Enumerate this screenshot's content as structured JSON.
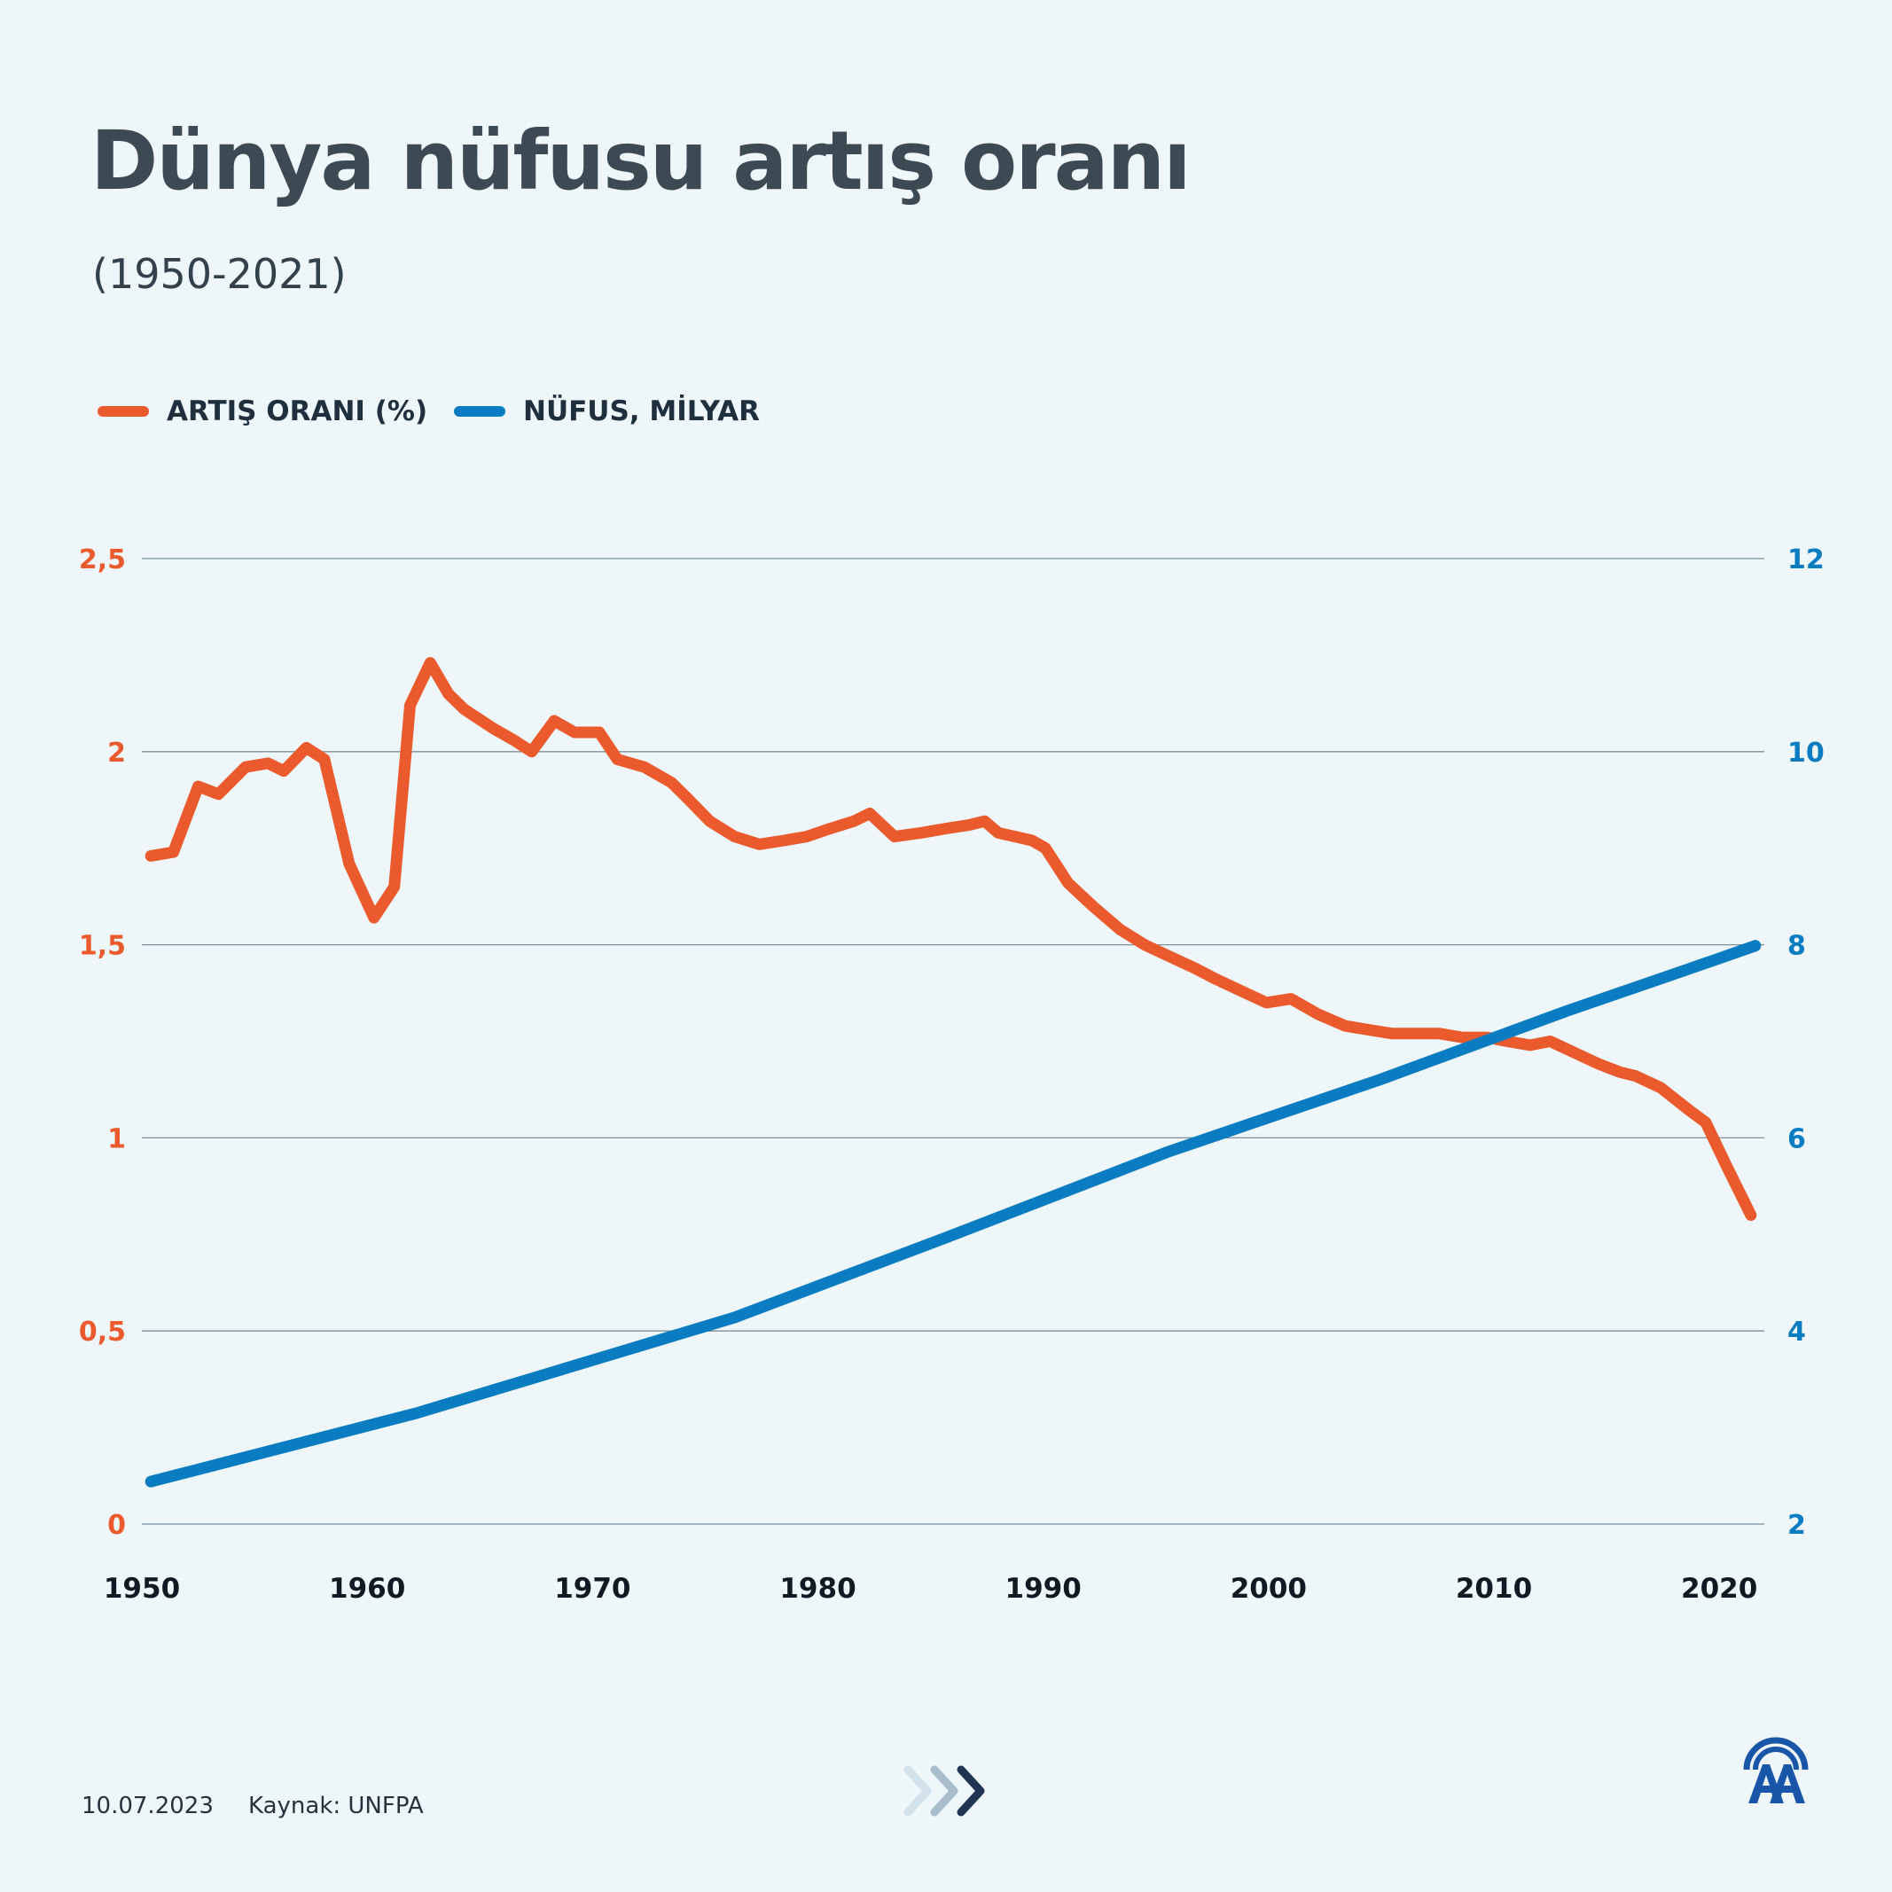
{
  "header": {
    "title": "Dünya nüfusu artış oranı",
    "subtitle": "(1950-2021)"
  },
  "legend": [
    {
      "label": "ARTIŞ ORANI (%)",
      "color": "#ea5a2d"
    },
    {
      "label": "NÜFUS, MİLYAR",
      "color": "#0a7cc1"
    }
  ],
  "footer": {
    "date": "10.07.2023",
    "source": "Kaynak: UNFPA"
  },
  "icons": {
    "chevrons": "forward-chevrons-icon",
    "logo": "anadolu-agency-logo"
  },
  "chart_data": {
    "type": "line",
    "x_ticks": [
      "1950",
      "1960",
      "1970",
      "1980",
      "1990",
      "2000",
      "2010",
      "2020"
    ],
    "xlim": [
      1950,
      2022
    ],
    "y_left": {
      "ticks": [
        "0",
        "0,5",
        "1",
        "1,5",
        "2",
        "2,5"
      ],
      "ylim": [
        0,
        2.5
      ],
      "color": "#ea5a2d"
    },
    "y_right": {
      "ticks": [
        "2",
        "4",
        "6",
        "8",
        "10",
        "12"
      ],
      "ylim": [
        2,
        12
      ],
      "color": "#0a7cc1"
    },
    "grid": true,
    "legend_position": "top-left",
    "series": [
      {
        "name": "ARTIŞ ORANI (%)",
        "axis": "left",
        "color": "#ea5a2d",
        "x": [
          1950.4,
          1951.4,
          1952.5,
          1953.4,
          1954.6,
          1955.6,
          1956.3,
          1957.3,
          1958.1,
          1959.2,
          1960.3,
          1961.2,
          1961.9,
          1962.8,
          1963.6,
          1964.3,
          1965.6,
          1966.5,
          1967.3,
          1968.3,
          1969.2,
          1970.3,
          1971.1,
          1972.3,
          1973.5,
          1974.2,
          1975.2,
          1976.3,
          1977.4,
          1978.5,
          1979.5,
          1980.5,
          1981.6,
          1982.3,
          1983.4,
          1984.6,
          1985.6,
          1986.7,
          1987.4,
          1988.0,
          1989.5,
          1990.1,
          1991.1,
          1992.2,
          1993.4,
          1994.5,
          1995.6,
          1996.7,
          1997.7,
          1998.8,
          1999.9,
          2001.0,
          2002.2,
          2003.4,
          2004.4,
          2005.5,
          2006.6,
          2007.6,
          2008.6,
          2009.7,
          2010.6,
          2011.6,
          2012.5,
          2013.6,
          2014.7,
          2015.6,
          2016.3,
          2017.4,
          2018.7,
          2019.4,
          2020.3,
          2021.4
        ],
        "values": [
          1.73,
          1.74,
          1.91,
          1.89,
          1.96,
          1.97,
          1.95,
          2.01,
          1.98,
          1.71,
          1.57,
          1.65,
          2.12,
          2.23,
          2.15,
          2.11,
          2.06,
          2.03,
          2.0,
          2.08,
          2.05,
          2.05,
          1.98,
          1.96,
          1.92,
          1.88,
          1.82,
          1.78,
          1.76,
          1.77,
          1.78,
          1.8,
          1.82,
          1.84,
          1.78,
          1.79,
          1.8,
          1.81,
          1.82,
          1.79,
          1.77,
          1.75,
          1.66,
          1.6,
          1.54,
          1.5,
          1.47,
          1.44,
          1.41,
          1.38,
          1.35,
          1.36,
          1.32,
          1.29,
          1.28,
          1.27,
          1.27,
          1.27,
          1.26,
          1.26,
          1.25,
          1.24,
          1.25,
          1.22,
          1.19,
          1.17,
          1.16,
          1.13,
          1.07,
          1.04,
          0.93,
          0.8
        ]
      },
      {
        "name": "NÜFUS, MİLYAR",
        "axis": "right",
        "color": "#0a7cc1",
        "x": [
          1950.4,
          1962.2,
          1976.3,
          1985.5,
          1995.6,
          2004.9,
          2013.3,
          2019.9,
          2021.6
        ],
        "values": [
          2.44,
          3.15,
          4.14,
          4.95,
          5.86,
          6.6,
          7.32,
          7.85,
          7.99
        ]
      }
    ]
  }
}
